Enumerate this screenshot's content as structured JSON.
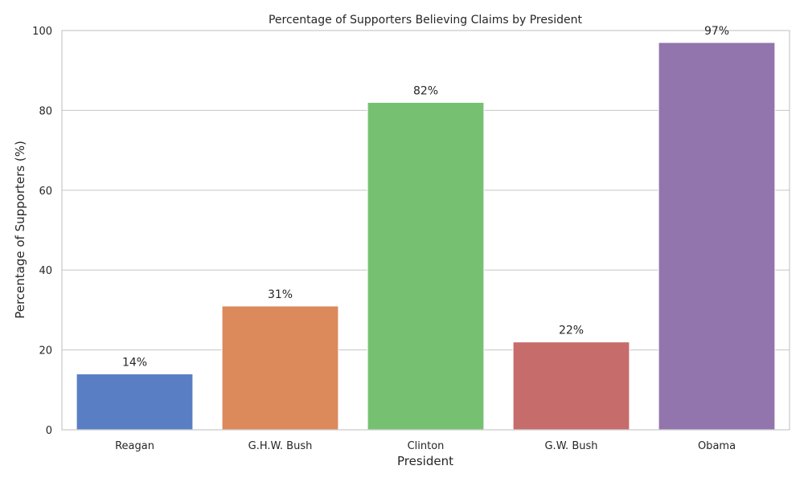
{
  "chart_data": {
    "type": "bar",
    "title": "Percentage of Supporters Believing Claims by President",
    "xlabel": "President",
    "ylabel": "Percentage of Supporters (%)",
    "categories": [
      "Reagan",
      "G.H.W. Bush",
      "Clinton",
      "G.W. Bush",
      "Obama"
    ],
    "values": [
      14,
      31,
      82,
      22,
      97
    ],
    "data_labels": [
      "14%",
      "31%",
      "82%",
      "22%",
      "97%"
    ],
    "colors": [
      "#5a7ec4",
      "#dc895c",
      "#76c171",
      "#c66c6b",
      "#9275ad"
    ],
    "ylim": [
      0,
      100
    ],
    "yticks": [
      0,
      20,
      40,
      60,
      80,
      100
    ],
    "ytick_labels": [
      "0",
      "20",
      "40",
      "60",
      "80",
      "100"
    ],
    "grid": true,
    "grid_color": "#cccccc",
    "legend": "none"
  }
}
